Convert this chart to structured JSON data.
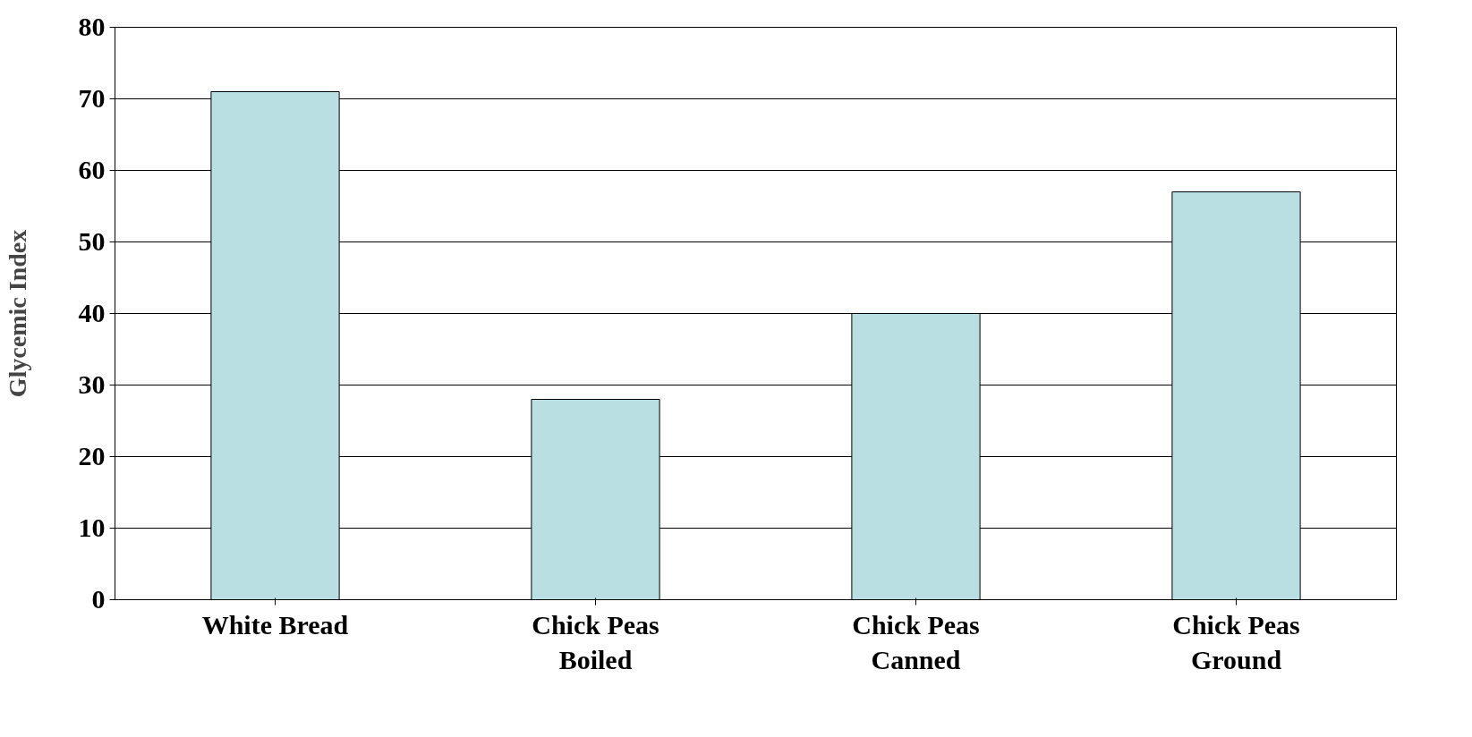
{
  "chart_data": {
    "type": "bar",
    "ylabel": "Glycemic Index",
    "categories": [
      "White Bread",
      "Chick Peas\nBoiled",
      "Chick Peas\nCanned",
      "Chick Peas\nGround"
    ],
    "values": [
      71,
      28,
      40,
      57
    ],
    "color": "#b9dfe3",
    "ylim": [
      0,
      80
    ],
    "yticks": [
      0,
      10,
      20,
      30,
      40,
      50,
      60,
      70,
      80
    ],
    "grid": "y"
  }
}
